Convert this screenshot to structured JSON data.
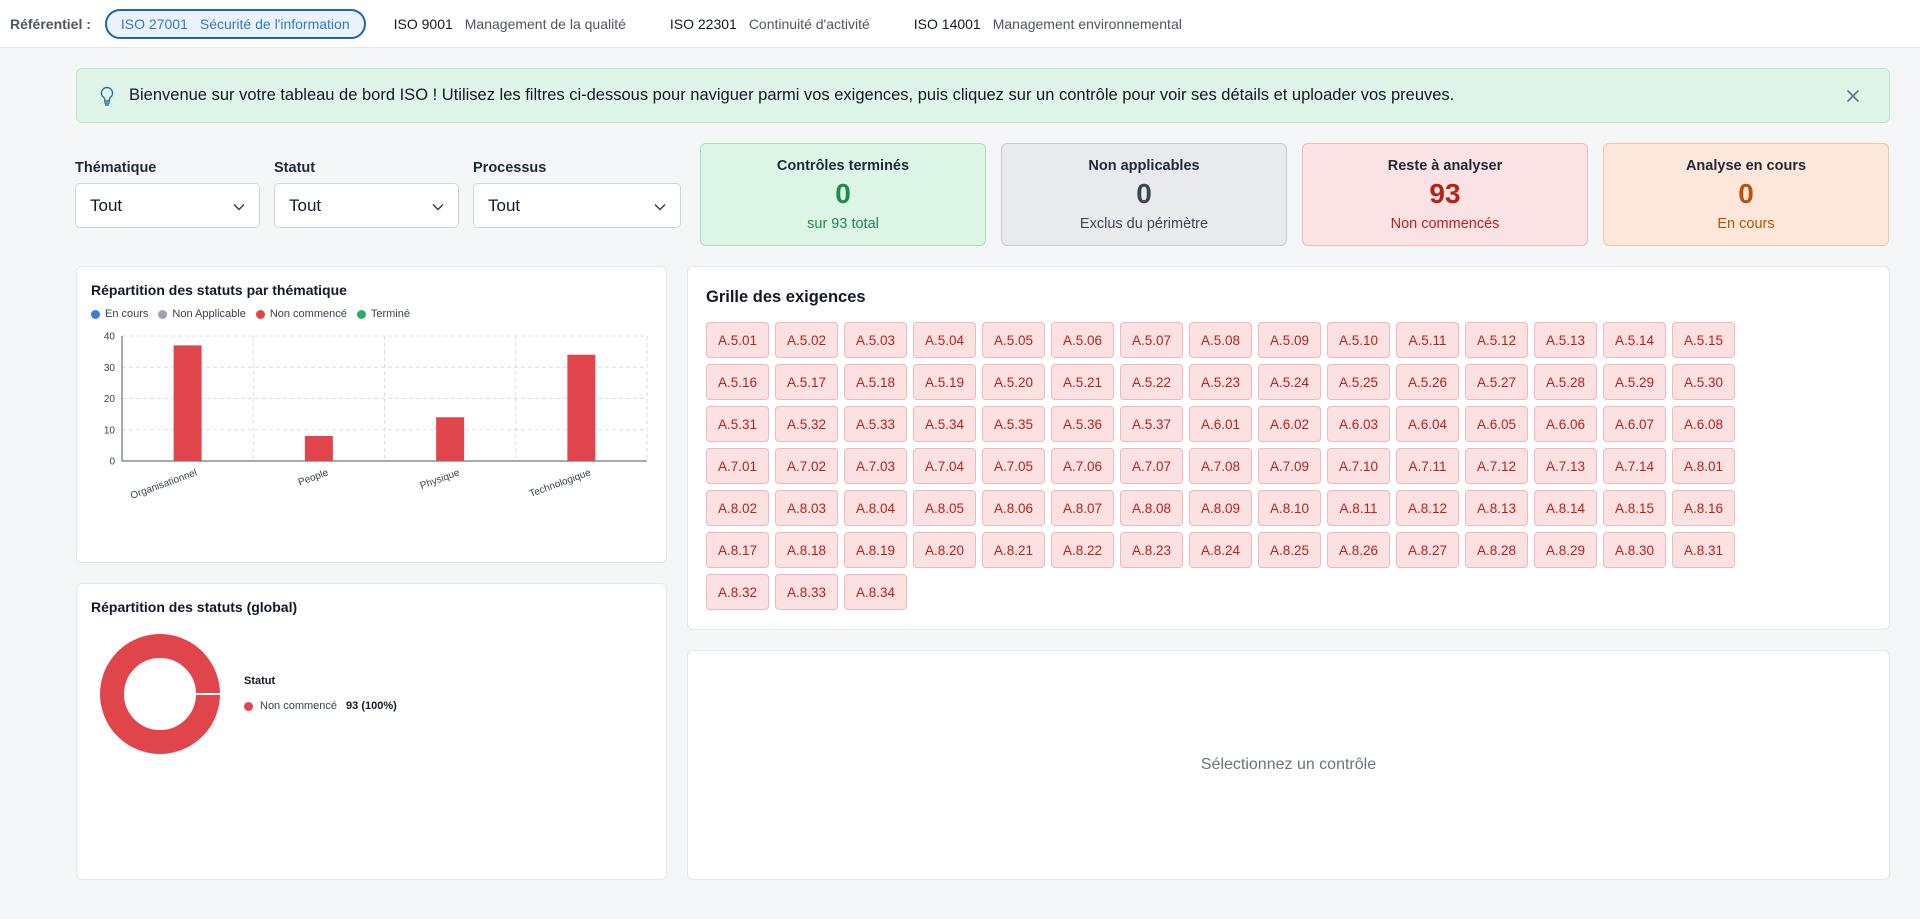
{
  "topbar": {
    "label": "Référentiel :",
    "tabs": [
      {
        "code": "ISO 27001",
        "desc": "Sécurité de l'information",
        "active": true
      },
      {
        "code": "ISO 9001",
        "desc": "Management de la qualité",
        "active": false
      },
      {
        "code": "ISO 22301",
        "desc": "Continuité d'activité",
        "active": false
      },
      {
        "code": "ISO 14001",
        "desc": "Management environnemental",
        "active": false
      }
    ]
  },
  "banner": {
    "message": "Bienvenue sur votre tableau de bord ISO ! Utilisez les filtres ci-dessous pour naviguer parmi vos exigences, puis cliquez sur un contrôle pour voir ses détails et uploader vos preuves."
  },
  "filters": {
    "thematique": {
      "label": "Thématique",
      "value": "Tout"
    },
    "statut": {
      "label": "Statut",
      "value": "Tout"
    },
    "processus": {
      "label": "Processus",
      "value": "Tout"
    }
  },
  "kpis": {
    "termines": {
      "title": "Contrôles terminés",
      "value": "0",
      "sub": "sur 93 total",
      "color": "#1f8a4c"
    },
    "non_applicables": {
      "title": "Non applicables",
      "value": "0",
      "sub": "Exclus du périmètre",
      "color": "#3f4651"
    },
    "reste": {
      "title": "Reste à analyser",
      "value": "93",
      "sub": "Non commencés",
      "color": "#b42318"
    },
    "en_cours": {
      "title": "Analyse en cours",
      "value": "0",
      "sub": "En cours",
      "color": "#b45309"
    }
  },
  "bar_panel": {
    "title": "Répartition des statuts par thématique",
    "legend": [
      {
        "label": "En cours",
        "color": "#3b7dd8"
      },
      {
        "label": "Non Applicable",
        "color": "#9ca3af"
      },
      {
        "label": "Non commencé",
        "color": "#e0454c"
      },
      {
        "label": "Terminé",
        "color": "#27ae60"
      }
    ]
  },
  "donut_panel": {
    "title": "Répartition des statuts (global)",
    "legend_title": "Statut",
    "legend_item": {
      "label": "Non commencé",
      "value": "93 (100%)",
      "color": "#e0454c"
    }
  },
  "grid_panel": {
    "title": "Grille des exigences",
    "controls": [
      "A.5.01",
      "A.5.02",
      "A.5.03",
      "A.5.04",
      "A.5.05",
      "A.5.06",
      "A.5.07",
      "A.5.08",
      "A.5.09",
      "A.5.10",
      "A.5.11",
      "A.5.12",
      "A.5.13",
      "A.5.14",
      "A.5.15",
      "A.5.16",
      "A.5.17",
      "A.5.18",
      "A.5.19",
      "A.5.20",
      "A.5.21",
      "A.5.22",
      "A.5.23",
      "A.5.24",
      "A.5.25",
      "A.5.26",
      "A.5.27",
      "A.5.28",
      "A.5.29",
      "A.5.30",
      "A.5.31",
      "A.5.32",
      "A.5.33",
      "A.5.34",
      "A.5.35",
      "A.5.36",
      "A.5.37",
      "A.6.01",
      "A.6.02",
      "A.6.03",
      "A.6.04",
      "A.6.05",
      "A.6.06",
      "A.6.07",
      "A.6.08",
      "A.7.01",
      "A.7.02",
      "A.7.03",
      "A.7.04",
      "A.7.05",
      "A.7.06",
      "A.7.07",
      "A.7.08",
      "A.7.09",
      "A.7.10",
      "A.7.11",
      "A.7.12",
      "A.7.13",
      "A.7.14",
      "A.8.01",
      "A.8.02",
      "A.8.03",
      "A.8.04",
      "A.8.05",
      "A.8.06",
      "A.8.07",
      "A.8.08",
      "A.8.09",
      "A.8.10",
      "A.8.11",
      "A.8.12",
      "A.8.13",
      "A.8.14",
      "A.8.15",
      "A.8.16",
      "A.8.17",
      "A.8.18",
      "A.8.19",
      "A.8.20",
      "A.8.21",
      "A.8.22",
      "A.8.23",
      "A.8.24",
      "A.8.25",
      "A.8.26",
      "A.8.27",
      "A.8.28",
      "A.8.29",
      "A.8.30",
      "A.8.31",
      "A.8.32",
      "A.8.33",
      "A.8.34"
    ]
  },
  "detail_panel": {
    "placeholder": "Sélectionnez un contrôle"
  },
  "chart_data": [
    {
      "type": "bar",
      "title": "Répartition des statuts par thématique",
      "categories": [
        "Organisationnel",
        "People",
        "Physique",
        "Technologique"
      ],
      "series": [
        {
          "name": "En cours",
          "values": [
            0,
            0,
            0,
            0
          ]
        },
        {
          "name": "Non Applicable",
          "values": [
            0,
            0,
            0,
            0
          ]
        },
        {
          "name": "Non commencé",
          "values": [
            37,
            8,
            14,
            34
          ]
        },
        {
          "name": "Terminé",
          "values": [
            0,
            0,
            0,
            0
          ]
        }
      ],
      "ylim": [
        0,
        40
      ],
      "yticks": [
        0,
        10,
        20,
        30,
        40
      ],
      "grid": true,
      "legend": "top-left"
    },
    {
      "type": "pie",
      "title": "Répartition des statuts (global)",
      "labels": [
        "Non commencé"
      ],
      "values": [
        93
      ],
      "donut": true,
      "legend": "right"
    }
  ]
}
